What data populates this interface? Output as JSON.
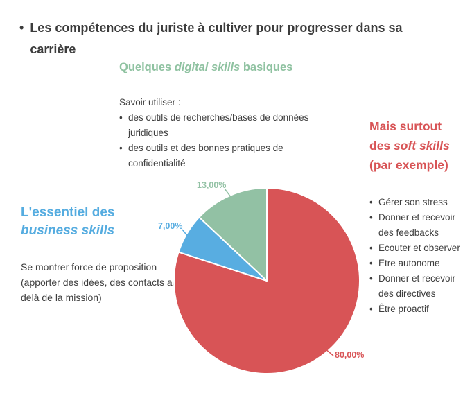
{
  "ui": {
    "bullet_char": "•"
  },
  "title": {
    "text": "Les compétences du juriste à cultiver pour progresser dans sa carrière"
  },
  "digital_section": {
    "heading": {
      "prefix": "Quelques ",
      "italic": "digital skills",
      "suffix": " basiques"
    },
    "heading_color": "#8fc2a1",
    "intro": "Savoir utiliser :",
    "items": [
      "des outils de recherches/bases de données juridiques",
      "des outils et des bonnes pratiques de confidentialité"
    ]
  },
  "soft_section": {
    "heading": {
      "prefix": "Mais surtout des ",
      "italic": "soft skills",
      "suffix": " (par exemple)"
    },
    "heading_color": "#d85456",
    "items": [
      "Gérer son stress",
      "Donner et recevoir des feedbacks",
      "Ecouter et observer",
      "Etre autonome",
      "Donner et recevoir des directives",
      "Être proactif"
    ]
  },
  "business_section": {
    "heading": {
      "prefix": "L'essentiel des ",
      "italic": "business skills",
      "suffix": ""
    },
    "heading_color": "#55ace0",
    "text": "Se montrer force de proposition (apporter des idées, des contacts au-delà de la mission)"
  },
  "chart_data": {
    "type": "pie",
    "title": "Les compétences du juriste à cultiver pour progresser dans sa carrière",
    "direction": "clockwise",
    "start_angle_deg": 0,
    "legend": "none",
    "slices": [
      {
        "label": "soft skills",
        "value": 80,
        "display": "80,00%",
        "color": "#d85456"
      },
      {
        "label": "business skills",
        "value": 7,
        "display": "7,00%",
        "color": "#58ade1"
      },
      {
        "label": "digital skills",
        "value": 13,
        "display": "13,00%",
        "color": "#92c1a4"
      }
    ]
  }
}
